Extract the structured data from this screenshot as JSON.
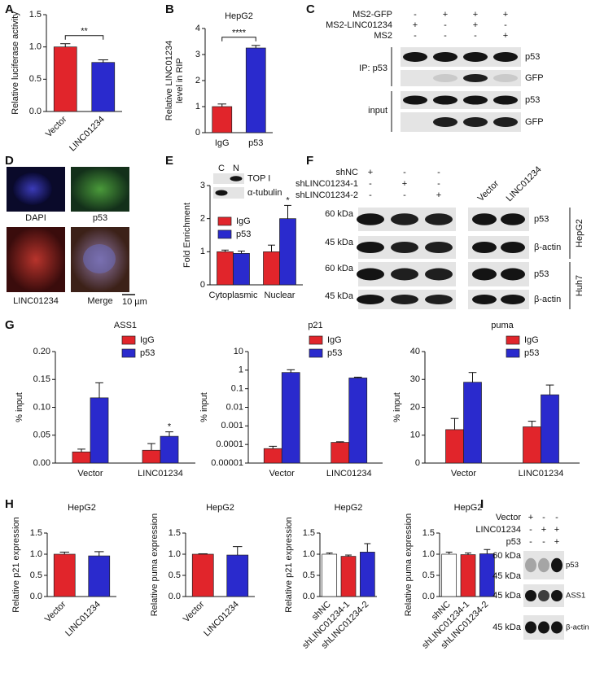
{
  "panel_labels": [
    "A",
    "B",
    "C",
    "D",
    "E",
    "F",
    "G",
    "H",
    "I"
  ],
  "chart_data": [
    {
      "type": "bar",
      "ylabel": "Relative luciferase activity",
      "categories": [
        "Vector",
        "LINC01234"
      ],
      "values": [
        1.0,
        0.76
      ],
      "errors": [
        0.05,
        0.04
      ],
      "colors": [
        "#e1252b",
        "#2a2acd"
      ],
      "ylim": [
        0,
        1.5
      ],
      "yticks": [
        {
          "value": 0,
          "label": "0.0"
        },
        0.5,
        {
          "value": 1,
          "label": "1.0"
        },
        1.5
      ],
      "significance": "**"
    },
    {
      "type": "bar",
      "title": "HepG2",
      "ylabel": [
        "Relative LINC01234",
        "level in RIP"
      ],
      "categories": [
        "IgG",
        "p53"
      ],
      "values": [
        1.0,
        3.25
      ],
      "errors": [
        0.1,
        0.1
      ],
      "colors": [
        "#e1252b",
        "#2a2acd"
      ],
      "ylim": [
        0,
        4
      ],
      "yticks": [
        0,
        1,
        2,
        3,
        4
      ],
      "significance": "****"
    },
    {
      "type": "bar",
      "ylabel": "Fold Enrichment",
      "categories": [
        "Cytoplasmic",
        "Nuclear"
      ],
      "series": [
        {
          "name": "IgG",
          "color": "#e1252b",
          "values": [
            1.0,
            1.0
          ],
          "errors": [
            0.05,
            0.2
          ]
        },
        {
          "name": "p53",
          "color": "#2a2acd",
          "values": [
            0.95,
            2.0
          ],
          "errors": [
            0.07,
            0.4
          ]
        }
      ],
      "ylim": [
        0,
        3
      ],
      "yticks": [
        0,
        1,
        2,
        3
      ],
      "legend": "center-left",
      "annotations": [
        {
          "text": "*",
          "category": "Nuclear",
          "series": "p53"
        }
      ]
    },
    {
      "type": "bar",
      "title": "ASS1",
      "ylabel": "% input",
      "categories": [
        "Vector",
        "LINC01234"
      ],
      "series": [
        {
          "name": "IgG",
          "color": "#e1252b",
          "values": [
            0.02,
            0.023
          ],
          "errors": [
            0.005,
            0.012
          ]
        },
        {
          "name": "p53",
          "color": "#2a2acd",
          "values": [
            0.117,
            0.048
          ],
          "errors": [
            0.027,
            0.008
          ]
        }
      ],
      "ylim": [
        0,
        0.2
      ],
      "yticks": [
        {
          "value": 0,
          "label": "0.00"
        },
        0.05,
        {
          "value": 0.1,
          "label": "0.10"
        },
        0.15,
        {
          "value": 0.2,
          "label": "0.20"
        }
      ],
      "legend": "upper-right",
      "annotations": [
        {
          "text": "*",
          "category": "LINC01234",
          "series": "p53"
        }
      ]
    },
    {
      "type": "bar",
      "title": "p21",
      "ylabel": "% input",
      "yscale": "log",
      "categories": [
        "Vector",
        "LINC01234"
      ],
      "series": [
        {
          "name": "IgG",
          "color": "#e1252b",
          "values": [
            6e-05,
            0.00013
          ],
          "errors": [
            2e-05,
            1e-05
          ]
        },
        {
          "name": "p53",
          "color": "#2a2acd",
          "values": [
            0.75,
            0.38
          ],
          "errors": [
            0.3,
            0.04
          ]
        }
      ],
      "ylim": [
        1e-05,
        10
      ],
      "yticks": [
        1e-05,
        0.0001,
        0.001,
        0.01,
        0.1,
        1,
        10
      ],
      "legend": "upper-right"
    },
    {
      "type": "bar",
      "title": "puma",
      "ylabel": "% input",
      "categories": [
        "Vector",
        "LINC01234"
      ],
      "series": [
        {
          "name": "IgG",
          "color": "#e1252b",
          "values": [
            12,
            13
          ],
          "errors": [
            4,
            2
          ]
        },
        {
          "name": "p53",
          "color": "#2a2acd",
          "values": [
            29,
            24.5
          ],
          "errors": [
            3.5,
            3.5
          ]
        }
      ],
      "ylim": [
        0,
        40
      ],
      "yticks": [
        0,
        10,
        20,
        30,
        40
      ],
      "legend": "upper-right"
    },
    {
      "type": "bar",
      "title": "HepG2",
      "ylabel": "Relative p21 expression",
      "categories": [
        "Vector",
        "LINC01234"
      ],
      "values": [
        1.0,
        0.96
      ],
      "errors": [
        0.05,
        0.1
      ],
      "colors": [
        "#e1252b",
        "#2a2acd"
      ],
      "ylim": [
        0,
        1.5
      ],
      "yticks": [
        {
          "value": 0,
          "label": "0.0"
        },
        0.5,
        {
          "value": 1,
          "label": "1.0"
        },
        1.5
      ]
    },
    {
      "type": "bar",
      "title": "HepG2",
      "ylabel": "Relative puma expression",
      "categories": [
        "Vector",
        "LINC01234"
      ],
      "values": [
        1.0,
        0.98
      ],
      "errors": [
        0.01,
        0.2
      ],
      "colors": [
        "#e1252b",
        "#2a2acd"
      ],
      "ylim": [
        0,
        1.5
      ],
      "yticks": [
        {
          "value": 0,
          "label": "0.0"
        },
        0.5,
        {
          "value": 1,
          "label": "1.0"
        },
        1.5
      ]
    },
    {
      "type": "bar",
      "title": "HepG2",
      "ylabel": "Relative p21 expression",
      "categories": [
        "shNC",
        "shLINC01234-1",
        "shLINC01234-2"
      ],
      "values": [
        1.0,
        0.95,
        1.05
      ],
      "errors": [
        0.03,
        0.03,
        0.2
      ],
      "colors": [
        "#ffffff",
        "#e1252b",
        "#2a2acd"
      ],
      "ylim": [
        0,
        1.5
      ],
      "yticks": [
        {
          "value": 0,
          "label": "0.0"
        },
        0.5,
        {
          "value": 1,
          "label": "1.0"
        },
        1.5
      ]
    },
    {
      "type": "bar",
      "title": "HepG2",
      "ylabel": "Relative puma expression",
      "categories": [
        "shNC",
        "shLINC01234-1",
        "shLINC01234-2"
      ],
      "values": [
        1.0,
        0.99,
        1.01
      ],
      "errors": [
        0.05,
        0.04,
        0.1
      ],
      "colors": [
        "#ffffff",
        "#e1252b",
        "#2a2acd"
      ],
      "ylim": [
        0,
        1.5
      ],
      "yticks": [
        {
          "value": 0,
          "label": "0.0"
        },
        0.5,
        {
          "value": 1,
          "label": "1.0"
        },
        1.5
      ]
    }
  ],
  "blot_C": {
    "conditions": [
      {
        "label": "MS2-GFP",
        "signs": [
          "-",
          "+",
          "+",
          "+"
        ]
      },
      {
        "label": "MS2-LINC01234",
        "signs": [
          "+",
          "-",
          "+",
          "-"
        ]
      },
      {
        "label": "MS2",
        "signs": [
          "-",
          "-",
          "-",
          "+"
        ]
      }
    ],
    "groups": [
      "IP: p53",
      "input"
    ],
    "bands": [
      "p53",
      "GFP",
      "p53",
      "GFP"
    ]
  },
  "microscopy_D": {
    "channels": [
      "DAPI",
      "p53",
      "LINC01234",
      "Merge"
    ],
    "scale_bar": "10 µm"
  },
  "blot_E_inset": {
    "fractions": [
      "C",
      "N"
    ],
    "bands": [
      "TOP I",
      "α-tubulin"
    ]
  },
  "blot_F": {
    "conditions": [
      {
        "label": "shNC",
        "signs": [
          "+",
          "-",
          "-"
        ]
      },
      {
        "label": "shLINC01234-1",
        "signs": [
          "-",
          "+",
          "-"
        ]
      },
      {
        "label": "shLINC01234-2",
        "signs": [
          "-",
          "-",
          "+"
        ]
      }
    ],
    "overexpression": [
      "Vector",
      "LINC01234"
    ],
    "rows": [
      {
        "marker": "60 kDa",
        "band": "p53"
      },
      {
        "marker": "45 kDa",
        "band": "β-actin"
      },
      {
        "marker": "60 kDa",
        "band": "p53"
      },
      {
        "marker": "45 kDa",
        "band": "β-actin"
      }
    ],
    "cell_lines": [
      "HepG2",
      "Huh7"
    ]
  },
  "blot_I": {
    "conditions": [
      {
        "label": "Vector",
        "signs": [
          "+",
          "-",
          "-"
        ]
      },
      {
        "label": "LINC01234",
        "signs": [
          "-",
          "+",
          "+"
        ]
      },
      {
        "label": "p53",
        "signs": [
          "-",
          "-",
          "+"
        ]
      }
    ],
    "markers": [
      "60 kDa",
      "45 kDa",
      "45 kDa",
      "45 kDa"
    ],
    "bands": [
      "p53",
      "ASS1",
      "β-actin"
    ]
  }
}
